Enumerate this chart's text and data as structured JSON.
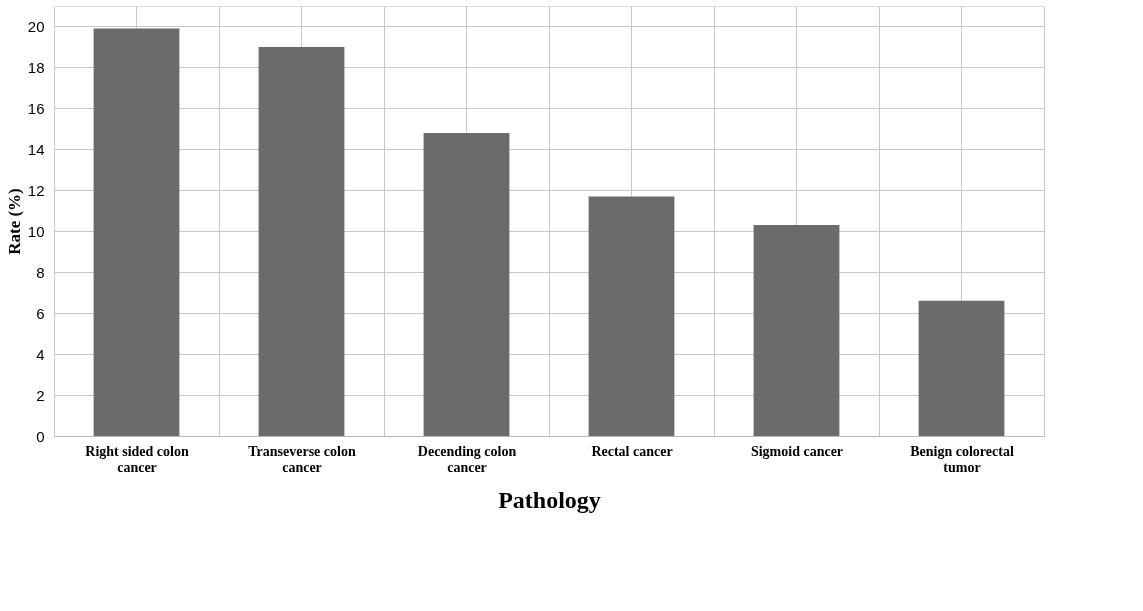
{
  "chart_data": {
    "type": "bar",
    "xlabel": "Pathology",
    "ylabel": "Rate (%)",
    "categories": [
      "Right sided colon cancer",
      "Transeverse colon cancer",
      "Decending colon cancer",
      "Rectal cancer",
      "Sigmoid cancer",
      "Benign colorectal tumor"
    ],
    "values": [
      19.9,
      19.0,
      14.8,
      11.7,
      10.3,
      6.6
    ],
    "color": "#6b6b6b",
    "ylim": [
      0,
      21
    ],
    "yticks": [
      0,
      2,
      4,
      6,
      8,
      10,
      12,
      14,
      16,
      18,
      20
    ],
    "grid": true
  }
}
